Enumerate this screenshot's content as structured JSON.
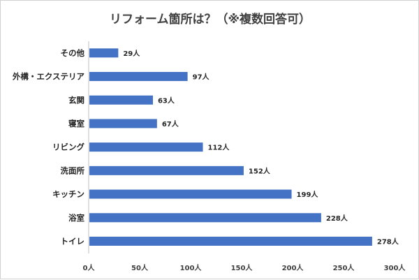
{
  "chart_data": {
    "type": "bar",
    "orientation": "horizontal",
    "title": "リフォーム箇所は？（※複数回答可）",
    "categories": [
      "その他",
      "外構・エクステリア",
      "玄関",
      "寝室",
      "リビング",
      "洗面所",
      "キッチン",
      "浴室",
      "トイレ"
    ],
    "values": [
      29,
      97,
      63,
      67,
      112,
      152,
      199,
      228,
      278
    ],
    "unit": "人",
    "data_labels": [
      "29人",
      "97人",
      "63人",
      "67人",
      "112人",
      "152人",
      "199人",
      "228人",
      "278人"
    ],
    "x_ticks": [
      "0人",
      "50人",
      "100人",
      "150人",
      "200人",
      "250人",
      "300人"
    ],
    "xlim": [
      0,
      300
    ],
    "xlabel": "",
    "ylabel": "",
    "grid": false,
    "bar_color": "#4472c4"
  }
}
